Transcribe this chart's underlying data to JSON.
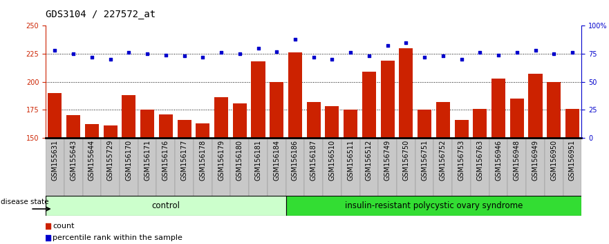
{
  "title": "GDS3104 / 227572_at",
  "samples": [
    "GSM155631",
    "GSM155643",
    "GSM155644",
    "GSM155729",
    "GSM156170",
    "GSM156171",
    "GSM156176",
    "GSM156177",
    "GSM156178",
    "GSM156179",
    "GSM156180",
    "GSM156181",
    "GSM156184",
    "GSM156186",
    "GSM156187",
    "GSM156510",
    "GSM156511",
    "GSM156512",
    "GSM156749",
    "GSM156750",
    "GSM156751",
    "GSM156752",
    "GSM156753",
    "GSM156763",
    "GSM156946",
    "GSM156948",
    "GSM156949",
    "GSM156950",
    "GSM156951"
  ],
  "bar_values": [
    190,
    170,
    162,
    161,
    188,
    175,
    171,
    166,
    163,
    186,
    181,
    218,
    200,
    226,
    182,
    178,
    175,
    209,
    219,
    230,
    175,
    182,
    166,
    176,
    203,
    185,
    207,
    200,
    176
  ],
  "dot_values_pct": [
    78,
    75,
    72,
    70,
    76,
    75,
    74,
    73,
    72,
    76,
    75,
    80,
    77,
    88,
    72,
    70,
    76,
    73,
    82,
    85,
    72,
    73,
    70,
    76,
    74,
    76,
    78,
    75,
    76
  ],
  "n_control": 13,
  "group_labels": [
    "control",
    "insulin-resistant polycystic ovary syndrome"
  ],
  "disease_state_label": "disease state",
  "left_ylim": [
    150,
    250
  ],
  "right_ylim": [
    0,
    100
  ],
  "left_yticks": [
    150,
    175,
    200,
    225,
    250
  ],
  "right_yticks": [
    0,
    25,
    50,
    75,
    100
  ],
  "right_yticklabels": [
    "0",
    "25",
    "50",
    "75",
    "100%"
  ],
  "bar_color": "#cc2200",
  "dot_color": "#0000cc",
  "control_bg_light": "#ccffcc",
  "disease_bg_dark": "#33dd33",
  "xtick_bg": "#c8c8c8",
  "hline_values": [
    175,
    200,
    225
  ],
  "legend_count_label": "count",
  "legend_pct_label": "percentile rank within the sample",
  "title_fontsize": 10,
  "tick_fontsize": 7,
  "axis_label_color_left": "#cc2200",
  "axis_label_color_right": "#0000cc"
}
